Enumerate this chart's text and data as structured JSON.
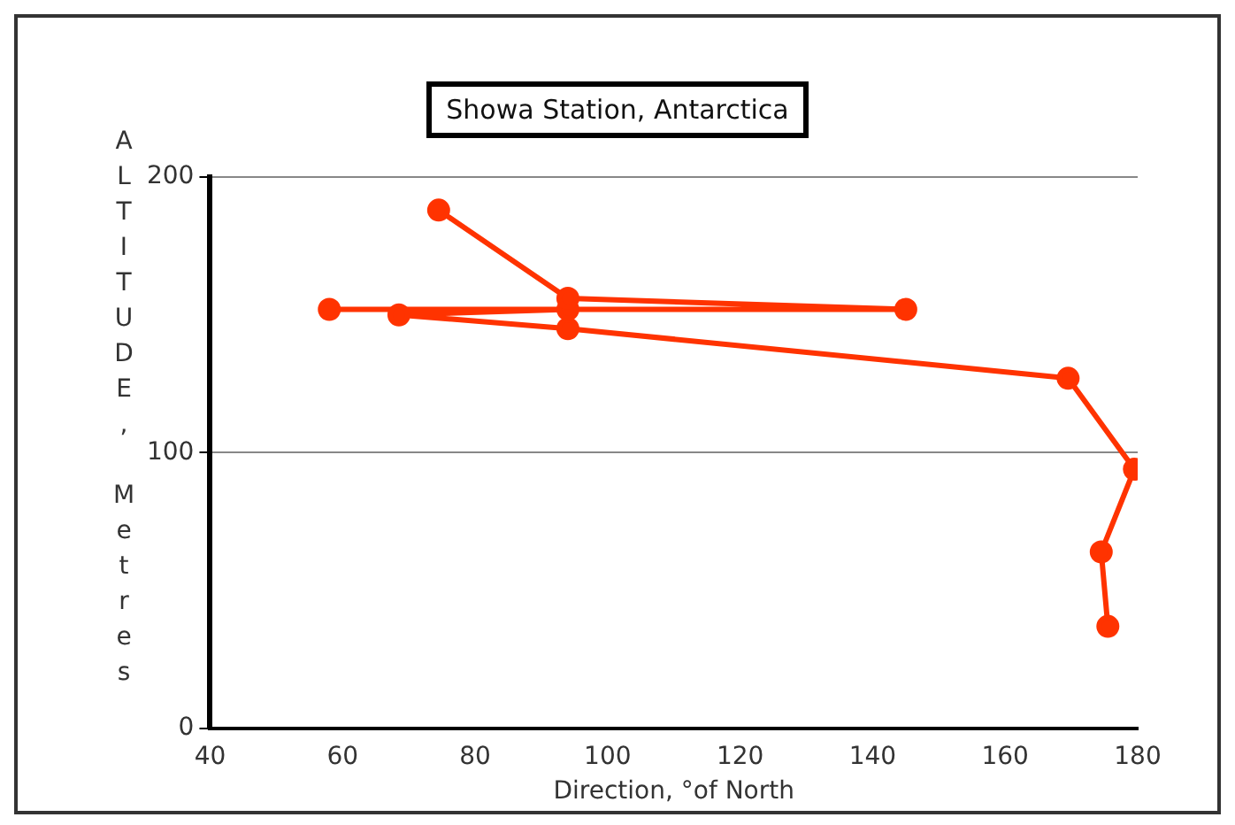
{
  "chart_data": {
    "type": "line",
    "title": "Showa Station, Antarctica",
    "xlabel": "Direction, °of North",
    "ylabel": "ALTITUDE, Metres",
    "xlim": [
      40,
      180
    ],
    "xticks": [
      40,
      60,
      80,
      100,
      120,
      140,
      160,
      180
    ],
    "ylim": [
      0,
      200
    ],
    "yticks": [
      0,
      100,
      200
    ],
    "grid": "y",
    "marker": "circle",
    "line_style": "solid",
    "series": [
      {
        "color": "#ff3300",
        "x": [
          175.5,
          174.5,
          179.5,
          169.5,
          94,
          68.5,
          94,
          58,
          145,
          94,
          74.5
        ],
        "values": [
          37,
          64,
          94,
          127,
          145,
          150,
          152,
          152,
          152,
          156,
          188
        ]
      }
    ]
  }
}
